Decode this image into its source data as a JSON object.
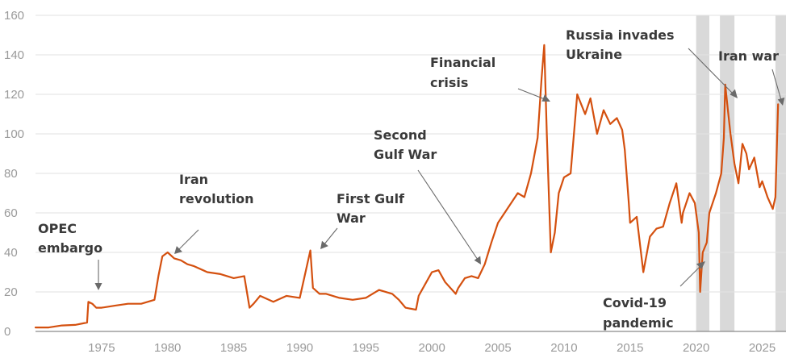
{
  "chart_data": {
    "type": "line",
    "title": "",
    "xlabel": "",
    "ylabel": "",
    "xlim": [
      1970,
      2026.8
    ],
    "ylim": [
      0,
      160
    ],
    "y_ticks": [
      "0",
      "20",
      "40",
      "60",
      "80",
      "100",
      "120",
      "140",
      "160"
    ],
    "x_ticks": [
      "1975",
      "1980",
      "1985",
      "1990",
      "1995",
      "2000",
      "2005",
      "2010",
      "2015",
      "2020",
      "2025"
    ],
    "grid": "horizontal",
    "line_color": "#d4500f",
    "band_color": "#d9d9d9",
    "shaded_periods": [
      [
        2020.0,
        2021.0
      ],
      [
        2021.8,
        2022.9
      ],
      [
        2026.0,
        2026.8
      ]
    ],
    "series": [
      {
        "x": [
          1970.0,
          1971.0,
          1972.0,
          1973.0,
          1973.9,
          1974.0,
          1974.3,
          1974.6,
          1975.0,
          1976.0,
          1977.0,
          1978.0,
          1979.0,
          1979.3,
          1979.6,
          1980.0,
          1980.5,
          1981.0,
          1981.5,
          1982.0,
          1983.0,
          1984.0,
          1985.0,
          1985.8,
          1986.2,
          1986.5,
          1987.0,
          1988.0,
          1989.0,
          1990.0,
          1990.6,
          1990.8,
          1991.0,
          1991.5,
          1992.0,
          1993.0,
          1994.0,
          1995.0,
          1996.0,
          1997.0,
          1997.5,
          1998.0,
          1998.8,
          1999.0,
          1999.5,
          2000.0,
          2000.5,
          2001.0,
          2001.8,
          2002.0,
          2002.5,
          2003.0,
          2003.5,
          2004.0,
          2004.5,
          2005.0,
          2005.5,
          2006.0,
          2006.5,
          2007.0,
          2007.5,
          2008.0,
          2008.3,
          2008.5,
          2008.7,
          2008.9,
          2009.0,
          2009.3,
          2009.6,
          2010.0,
          2010.5,
          2011.0,
          2011.3,
          2011.6,
          2012.0,
          2012.5,
          2013.0,
          2013.5,
          2014.0,
          2014.4,
          2014.6,
          2014.9,
          2015.0,
          2015.5,
          2016.0,
          2016.5,
          2017.0,
          2017.5,
          2018.0,
          2018.5,
          2018.9,
          2019.0,
          2019.5,
          2019.9,
          2020.2,
          2020.3,
          2020.5,
          2020.8,
          2021.0,
          2021.5,
          2021.9,
          2022.1,
          2022.2,
          2022.4,
          2022.6,
          2022.9,
          2023.2,
          2023.5,
          2023.8,
          2024.0,
          2024.4,
          2024.8,
          2025.0,
          2025.4,
          2025.8,
          2026.0,
          2026.2
        ],
        "y": [
          2,
          2,
          3,
          3.3,
          4.5,
          15,
          14,
          12,
          12,
          13,
          14,
          14,
          16,
          28,
          38,
          40,
          37,
          36,
          34,
          33,
          30,
          29,
          27,
          28,
          12,
          14,
          18,
          15,
          18,
          17,
          35,
          41,
          22,
          19,
          19,
          17,
          16,
          17,
          21,
          19,
          16,
          12,
          11,
          18,
          24,
          30,
          31,
          25,
          19,
          22,
          27,
          28,
          27,
          34,
          45,
          55,
          60,
          65,
          70,
          68,
          80,
          98,
          128,
          145,
          100,
          60,
          40,
          50,
          70,
          78,
          80,
          120,
          115,
          110,
          118,
          100,
          112,
          105,
          108,
          102,
          92,
          65,
          55,
          58,
          30,
          48,
          52,
          53,
          65,
          75,
          55,
          60,
          70,
          65,
          50,
          20,
          40,
          45,
          60,
          70,
          80,
          98,
          125,
          112,
          100,
          85,
          75,
          95,
          90,
          82,
          88,
          73,
          76,
          68,
          62,
          68,
          115
        ]
      }
    ],
    "annotations": [
      {
        "lines": [
          "OPEC",
          "embargo"
        ]
      },
      {
        "lines": [
          "Iran",
          "revolution"
        ]
      },
      {
        "lines": [
          "First Gulf",
          "War"
        ]
      },
      {
        "lines": [
          "Second",
          "Gulf War"
        ]
      },
      {
        "lines": [
          "Financial",
          "crisis"
        ]
      },
      {
        "lines": [
          "Russia invades",
          "Ukraine"
        ]
      },
      {
        "lines": [
          "Iran war"
        ]
      },
      {
        "lines": [
          "Covid-19",
          "pandemic"
        ]
      }
    ]
  }
}
